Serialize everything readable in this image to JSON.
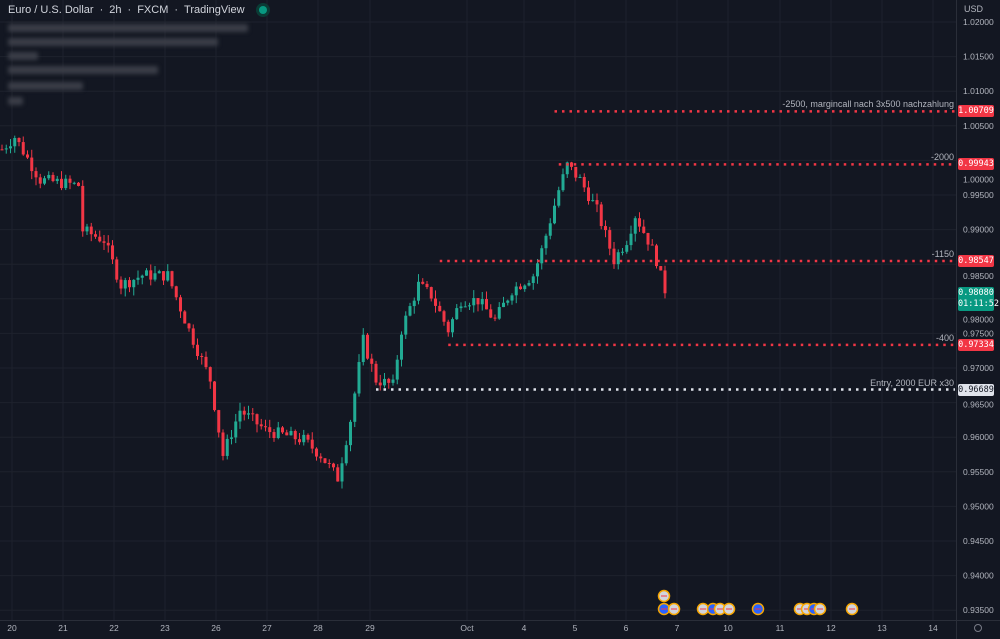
{
  "header": {
    "symbol": "Euro / U.S. Dollar",
    "interval": "2h",
    "exchange": "FXCM",
    "source": "TradingView"
  },
  "axis": {
    "currency": "USD"
  },
  "chart_data": {
    "type": "candlestick",
    "title": "Euro / U.S. Dollar · 2h · FXCM",
    "y_ticks": [
      "1.02000",
      "1.01500",
      "1.01000",
      "1.00500",
      "1.00000",
      "0.99500",
      "0.99000",
      "0.98500",
      "0.98000",
      "0.97500",
      "0.97000",
      "0.96500",
      "0.96000",
      "0.95500",
      "0.95000",
      "0.94500",
      "0.94000",
      "0.93500"
    ],
    "ylim": [
      0.932,
      1.023
    ],
    "x_ticks": [
      "20",
      "21",
      "22",
      "23",
      "26",
      "27",
      "28",
      "29",
      "Oct",
      "4",
      "5",
      "6",
      "7",
      "10",
      "11",
      "12",
      "13",
      "14"
    ],
    "close_path": [
      [
        1,
        1.0022
      ],
      [
        3,
        1.0034
      ],
      [
        9,
        0.9972
      ],
      [
        18,
        0.9964
      ],
      [
        19,
        0.9899
      ],
      [
        24,
        0.9885
      ],
      [
        28,
        0.982
      ],
      [
        33,
        0.9834
      ],
      [
        39,
        0.9834
      ],
      [
        44,
        0.9755
      ],
      [
        49,
        0.9683
      ],
      [
        52,
        0.9574
      ],
      [
        56,
        0.9639
      ],
      [
        62,
        0.961
      ],
      [
        71,
        0.9596
      ],
      [
        75,
        0.9574
      ],
      [
        79,
        0.9541
      ],
      [
        82,
        0.9625
      ],
      [
        85,
        0.974
      ],
      [
        88,
        0.9683
      ],
      [
        92,
        0.9675
      ],
      [
        94,
        0.9755
      ],
      [
        98,
        0.982
      ],
      [
        101,
        0.9805
      ],
      [
        105,
        0.9755
      ],
      [
        108,
        0.9798
      ],
      [
        112,
        0.9798
      ],
      [
        116,
        0.9769
      ],
      [
        120,
        0.9813
      ],
      [
        125,
        0.9834
      ],
      [
        127,
        0.987
      ],
      [
        131,
        0.9957
      ],
      [
        133,
        0.9993
      ],
      [
        136,
        0.9972
      ],
      [
        140,
        0.9928
      ],
      [
        144,
        0.9856
      ],
      [
        147,
        0.9885
      ],
      [
        149,
        0.9921
      ],
      [
        152,
        0.9885
      ],
      [
        154,
        0.9856
      ],
      [
        156,
        0.9808
      ]
    ],
    "last_price": "0.98080",
    "countdown": "01:11:52",
    "levels": [
      {
        "price": 1.00709,
        "label": "1.00709",
        "text": "-2500, margincall nach 3x500 nachzahlung",
        "color": "#f23645",
        "start": 130
      },
      {
        "price": 0.99943,
        "label": "0.99943",
        "text": "-2000",
        "color": "#f23645",
        "start": 131
      },
      {
        "price": 0.98547,
        "label": "0.98547",
        "text": "-1150",
        "color": "#f23645",
        "start": 103
      },
      {
        "price": 0.97334,
        "label": "0.97334",
        "text": "-400",
        "color": "#f23645",
        "start": 105
      },
      {
        "price": 0.96689,
        "label": "0.96689",
        "text": "Entry, 2000 EUR x30",
        "color": "#e0e3eb",
        "start": 88
      }
    ]
  },
  "colors": {
    "up": "#22ab94",
    "down": "#f23645",
    "bg": "#131722"
  }
}
